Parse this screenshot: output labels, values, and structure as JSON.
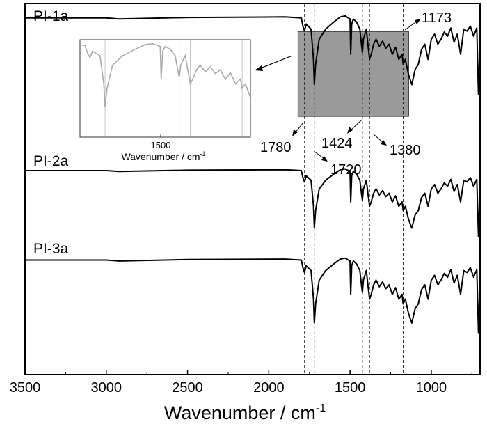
{
  "chart_data": {
    "type": "line",
    "title": "",
    "xlabel": "Wavenumber / cm",
    "xlabel_superscript": "-1",
    "ylabel": "",
    "xlim": [
      3500,
      700
    ],
    "x_reversed": true,
    "yaxis_ticks_shown": false,
    "xticks": [
      3500,
      3000,
      2500,
      2000,
      1500,
      1000
    ],
    "grid": false,
    "reference_lines": [
      1780,
      1720,
      1424,
      1380,
      1173
    ],
    "series": [
      {
        "name": "PI-1a",
        "x": [
          3500,
          3000,
          2920,
          2500,
          1900,
          1800,
          1790,
          1780,
          1770,
          1740,
          1725,
          1720,
          1712,
          1690,
          1650,
          1600,
          1560,
          1530,
          1500,
          1496,
          1490,
          1480,
          1460,
          1440,
          1430,
          1424,
          1418,
          1400,
          1390,
          1380,
          1370,
          1355,
          1340,
          1320,
          1300,
          1280,
          1260,
          1240,
          1220,
          1200,
          1180,
          1173,
          1160,
          1140,
          1120,
          1100,
          1080,
          1060,
          1040,
          1020,
          1000,
          980,
          960,
          940,
          920,
          900,
          880,
          860,
          840,
          820,
          800,
          780,
          760,
          740,
          720,
          710,
          700
        ],
        "y": [
          0.96,
          0.96,
          0.95,
          0.965,
          0.97,
          0.96,
          0.88,
          0.83,
          0.9,
          0.85,
          0.55,
          0.3,
          0.5,
          0.75,
          0.85,
          0.92,
          0.97,
          0.98,
          0.95,
          0.6,
          0.9,
          0.95,
          0.92,
          0.85,
          0.7,
          0.62,
          0.75,
          0.85,
          0.7,
          0.55,
          0.6,
          0.7,
          0.75,
          0.68,
          0.73,
          0.66,
          0.7,
          0.6,
          0.67,
          0.55,
          0.6,
          0.5,
          0.55,
          0.4,
          0.3,
          0.45,
          0.5,
          0.65,
          0.7,
          0.55,
          0.75,
          0.8,
          0.7,
          0.75,
          0.82,
          0.78,
          0.86,
          0.72,
          0.8,
          0.6,
          0.85,
          0.83,
          0.88,
          0.78,
          0.86,
          0.2,
          0.8
        ]
      },
      {
        "name": "PI-2a",
        "x": [
          3500,
          3000,
          2920,
          2500,
          1900,
          1800,
          1790,
          1780,
          1770,
          1740,
          1725,
          1720,
          1712,
          1690,
          1650,
          1600,
          1560,
          1530,
          1500,
          1496,
          1490,
          1480,
          1460,
          1440,
          1430,
          1424,
          1418,
          1400,
          1390,
          1380,
          1370,
          1355,
          1340,
          1320,
          1300,
          1280,
          1260,
          1240,
          1220,
          1200,
          1180,
          1173,
          1160,
          1140,
          1120,
          1100,
          1080,
          1060,
          1040,
          1020,
          1000,
          980,
          960,
          940,
          920,
          900,
          880,
          860,
          840,
          820,
          800,
          780,
          760,
          740,
          720,
          710,
          700
        ],
        "y": [
          0.96,
          0.96,
          0.95,
          0.965,
          0.97,
          0.96,
          0.88,
          0.83,
          0.9,
          0.85,
          0.55,
          0.3,
          0.5,
          0.75,
          0.85,
          0.92,
          0.97,
          0.98,
          0.95,
          0.6,
          0.9,
          0.95,
          0.92,
          0.85,
          0.7,
          0.62,
          0.75,
          0.85,
          0.7,
          0.55,
          0.6,
          0.7,
          0.75,
          0.68,
          0.73,
          0.66,
          0.7,
          0.6,
          0.67,
          0.55,
          0.6,
          0.5,
          0.55,
          0.4,
          0.3,
          0.45,
          0.5,
          0.65,
          0.7,
          0.55,
          0.75,
          0.8,
          0.7,
          0.75,
          0.82,
          0.78,
          0.86,
          0.72,
          0.8,
          0.6,
          0.85,
          0.83,
          0.88,
          0.78,
          0.86,
          0.2,
          0.8
        ]
      },
      {
        "name": "PI-3a",
        "x": [
          3500,
          3000,
          2920,
          2500,
          1900,
          1800,
          1790,
          1780,
          1770,
          1740,
          1725,
          1720,
          1712,
          1690,
          1650,
          1600,
          1560,
          1530,
          1500,
          1496,
          1490,
          1480,
          1460,
          1440,
          1430,
          1424,
          1418,
          1400,
          1390,
          1380,
          1370,
          1355,
          1340,
          1320,
          1300,
          1280,
          1260,
          1240,
          1220,
          1200,
          1180,
          1173,
          1160,
          1140,
          1120,
          1100,
          1080,
          1060,
          1040,
          1020,
          1000,
          980,
          960,
          940,
          920,
          900,
          880,
          860,
          840,
          820,
          800,
          780,
          760,
          740,
          720,
          710,
          700
        ],
        "y": [
          0.96,
          0.96,
          0.95,
          0.965,
          0.97,
          0.96,
          0.88,
          0.83,
          0.9,
          0.85,
          0.55,
          0.3,
          0.5,
          0.75,
          0.85,
          0.92,
          0.97,
          0.98,
          0.95,
          0.6,
          0.9,
          0.95,
          0.92,
          0.85,
          0.7,
          0.62,
          0.75,
          0.85,
          0.7,
          0.55,
          0.6,
          0.7,
          0.75,
          0.68,
          0.73,
          0.66,
          0.7,
          0.6,
          0.67,
          0.55,
          0.6,
          0.5,
          0.55,
          0.4,
          0.3,
          0.45,
          0.5,
          0.65,
          0.7,
          0.55,
          0.75,
          0.8,
          0.7,
          0.75,
          0.82,
          0.78,
          0.86,
          0.72,
          0.8,
          0.6,
          0.85,
          0.83,
          0.88,
          0.78,
          0.86,
          0.2,
          0.8
        ]
      }
    ],
    "annotations": [
      "1780",
      "1720",
      "1424",
      "1380",
      "1173"
    ],
    "highlight_region": {
      "x_from": 1820,
      "x_to": 1140,
      "color": "#9a9a9a"
    },
    "inset": {
      "xlabel": "Wavenumber / cm",
      "xlabel_superscript": "-1",
      "xticks": [
        1500
      ],
      "xlim": [
        1820,
        1140
      ],
      "x": [
        1820,
        1800,
        1790,
        1780,
        1770,
        1740,
        1725,
        1720,
        1712,
        1690,
        1650,
        1600,
        1560,
        1530,
        1500,
        1496,
        1490,
        1480,
        1460,
        1440,
        1430,
        1424,
        1418,
        1400,
        1390,
        1380,
        1370,
        1355,
        1340,
        1320,
        1300,
        1280,
        1260,
        1240,
        1220,
        1200,
        1180,
        1173,
        1160,
        1140
      ],
      "y": [
        0.97,
        0.96,
        0.88,
        0.83,
        0.9,
        0.85,
        0.55,
        0.3,
        0.5,
        0.75,
        0.85,
        0.92,
        0.97,
        0.98,
        0.95,
        0.6,
        0.9,
        0.95,
        0.92,
        0.85,
        0.7,
        0.62,
        0.75,
        0.85,
        0.7,
        0.55,
        0.6,
        0.7,
        0.75,
        0.68,
        0.73,
        0.66,
        0.7,
        0.6,
        0.67,
        0.55,
        0.6,
        0.5,
        0.55,
        0.4
      ],
      "reference_lines": [
        1780,
        1720,
        1424,
        1380,
        1173
      ]
    }
  }
}
